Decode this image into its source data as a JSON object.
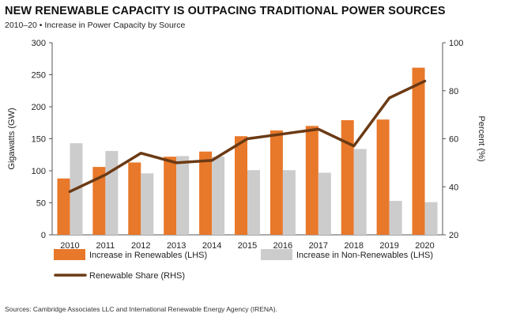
{
  "header": {
    "title": "NEW RENEWABLE CAPACITY IS OUTPACING TRADITIONAL POWER SOURCES",
    "subtitle": "2010–20 • Increase in Power Capacity by Source"
  },
  "footer": {
    "source": "Sources: Cambridge Associates LLC and International Renewable Energy Agency (IRENA)."
  },
  "colors": {
    "renewables": "#e8782a",
    "non_renewables": "#cccccc",
    "share": "#6b3a14",
    "axis": "#555555",
    "text": "#222222"
  },
  "chart_data": {
    "type": "bar",
    "categories": [
      "2010",
      "2011",
      "2012",
      "2013",
      "2014",
      "2015",
      "2016",
      "2017",
      "2018",
      "2019",
      "2020"
    ],
    "series": [
      {
        "name": "Increase in Renewables (LHS)",
        "type": "bar",
        "axis": "left",
        "values": [
          88,
          106,
          113,
          122,
          130,
          154,
          163,
          170,
          179,
          180,
          261
        ]
      },
      {
        "name": "Increase in Non-Renewables (LHS)",
        "type": "bar",
        "axis": "left",
        "values": [
          143,
          131,
          96,
          123,
          122,
          101,
          101,
          97,
          134,
          53,
          51
        ]
      },
      {
        "name": "Renewable Share (RHS)",
        "type": "line",
        "axis": "right",
        "values": [
          38,
          45,
          54,
          50,
          51,
          60,
          62,
          64,
          57,
          77,
          84
        ]
      }
    ],
    "ylabel": "Gigawatts (GW)",
    "ylabel_right": "Percent (%)",
    "ylim": [
      0,
      300
    ],
    "ylim_right": [
      20,
      100
    ],
    "yticks": [
      0,
      50,
      100,
      150,
      200,
      250,
      300
    ],
    "yticks_right": [
      20,
      40,
      60,
      80,
      100
    ],
    "grid": false,
    "legend": "bottom"
  }
}
